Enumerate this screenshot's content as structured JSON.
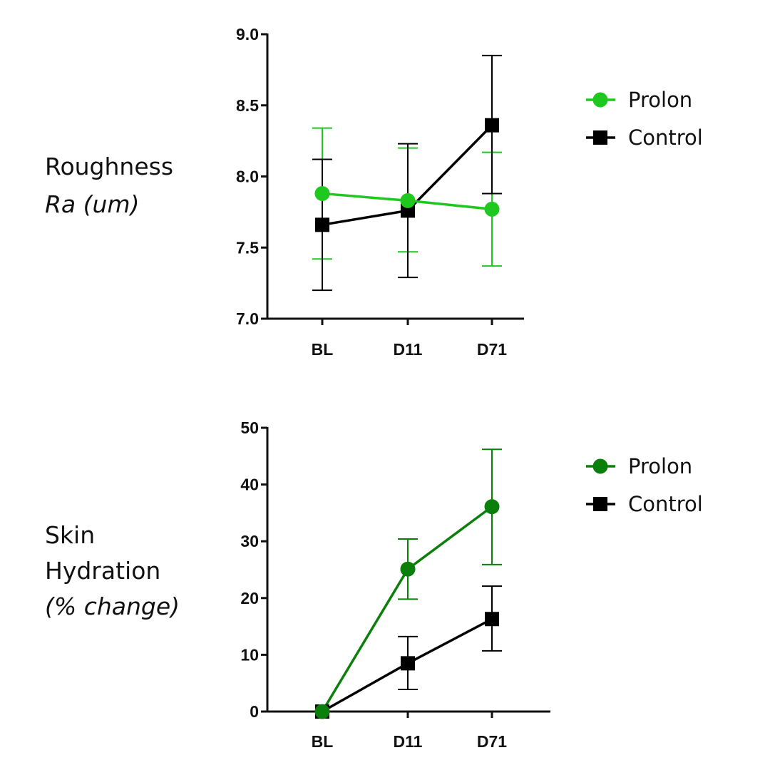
{
  "chart_data": [
    {
      "type": "line",
      "ylabel_lines": [
        "Roughness",
        "Ra (um)"
      ],
      "categories": [
        "BL",
        "D11",
        "D71"
      ],
      "ylim": [
        7.0,
        9.0
      ],
      "yticks": [
        "7.0",
        "7.5",
        "8.0",
        "8.5",
        "9.0"
      ],
      "grid": false,
      "legend_position": "right",
      "series": [
        {
          "name": "Prolon",
          "marker": "circle",
          "color": "#1ec81e",
          "values": [
            7.88,
            7.83,
            7.77
          ],
          "err_upper": [
            8.34,
            8.2,
            8.17
          ],
          "err_lower": [
            7.42,
            7.47,
            7.37
          ]
        },
        {
          "name": "Control",
          "marker": "square",
          "color": "#000000",
          "values": [
            7.66,
            7.76,
            8.36
          ],
          "err_upper": [
            8.12,
            8.23,
            8.85
          ],
          "err_lower": [
            7.2,
            7.29,
            7.88
          ]
        }
      ]
    },
    {
      "type": "line",
      "ylabel_lines": [
        "Skin",
        "Hydration",
        "(% change)"
      ],
      "categories": [
        "BL",
        "D11",
        "D71"
      ],
      "ylim": [
        0,
        50
      ],
      "yticks": [
        "0",
        "10",
        "20",
        "30",
        "40",
        "50"
      ],
      "grid": false,
      "legend_position": "right",
      "series": [
        {
          "name": "Prolon",
          "marker": "circle",
          "color": "#0a7f0a",
          "values": [
            0,
            25.1,
            36.1
          ],
          "err_upper": [
            0,
            30.4,
            46.2
          ],
          "err_lower": [
            0,
            19.8,
            25.9
          ]
        },
        {
          "name": "Control",
          "marker": "square",
          "color": "#000000",
          "values": [
            0,
            8.5,
            16.3
          ],
          "err_upper": [
            0,
            13.2,
            22.1
          ],
          "err_lower": [
            0,
            3.9,
            10.7
          ]
        }
      ]
    }
  ]
}
